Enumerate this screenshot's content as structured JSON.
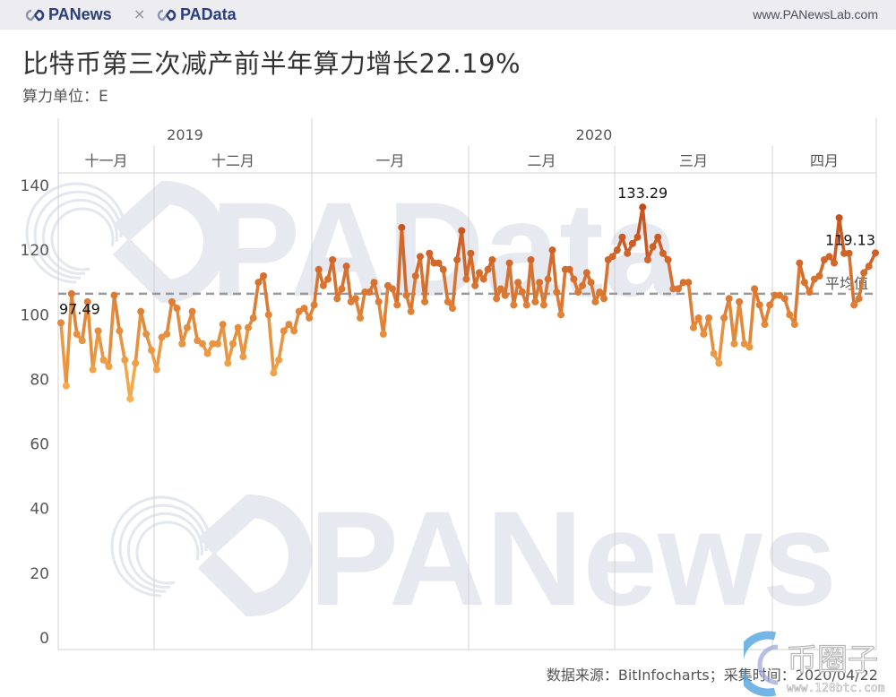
{
  "header": {
    "brand_left": "PANews",
    "separator": "×",
    "brand_right": "PAData",
    "site_url": "www.PANewsLab.com"
  },
  "title": "比特币第三次减产前半年算力增长22.19%",
  "subtitle": "算力单位：E",
  "footer": {
    "source": "数据来源：BitInfocharts；采集时间：2020/04/22"
  },
  "watermarks": {
    "center_top": "PAData",
    "center_bottom": "PANews",
    "corner_text": "币圈子",
    "corner_url": "www.120btc.com"
  },
  "colors": {
    "line_start": "#f5a442",
    "line_end": "#c9501c",
    "average_line": "#999999",
    "grid": "#d0d0d0",
    "watermark": "#e6e9f0",
    "brand": "#2a3e7a"
  },
  "chart_data": {
    "type": "line",
    "title": "比特币第三次减产前半年算力增长22.19%",
    "ylabel": "算力单位：E",
    "xlabel": "",
    "ylim": [
      0,
      140
    ],
    "yticks": [
      0,
      20,
      40,
      60,
      80,
      100,
      120,
      140
    ],
    "grid": true,
    "years": [
      {
        "label": "2019",
        "months": 2
      },
      {
        "label": "2020",
        "months": 4
      }
    ],
    "months": [
      "十一月",
      "十二月",
      "一月",
      "二月",
      "三月",
      "四月"
    ],
    "average": {
      "label": "平均值",
      "value": 106.5
    },
    "annotations": [
      {
        "label": "97.49",
        "point": "first"
      },
      {
        "label": "133.29",
        "point": "max"
      },
      {
        "label": "119.13",
        "point": "last"
      }
    ],
    "series": [
      {
        "name": "算力",
        "segments": [
          {
            "month": "十一月",
            "values": [
              97.49,
              78,
              106.5,
              94,
              92,
              104,
              83,
              95,
              86,
              84,
              106,
              95,
              86,
              74,
              85,
              101,
              94,
              89
            ]
          },
          {
            "month": "十二月",
            "values": [
              83,
              93,
              94,
              104,
              102,
              91,
              96,
              101,
              92,
              91,
              88,
              91,
              91,
              97,
              85,
              91,
              96,
              87,
              96,
              99,
              110,
              112,
              100,
              82,
              86,
              95,
              97,
              95,
              101,
              102,
              99
            ]
          },
          {
            "month": "一月",
            "values": [
              103,
              114,
              109,
              111,
              117,
              105,
              108,
              115,
              104,
              105,
              99,
              107,
              107,
              110,
              104,
              94,
              109,
              108,
              103,
              127,
              106,
              101,
              112,
              118,
              104,
              119,
              116,
              116,
              114,
              104,
              102,
              117,
              126,
              111
            ]
          },
          {
            "month": "二月",
            "values": [
              119,
              109,
              113,
              111,
              114,
              117,
              105,
              108,
              106,
              116,
              103,
              110,
              107,
              103,
              117,
              104,
              110,
              103,
              111,
              120,
              107,
              100,
              114,
              114,
              111,
              107,
              109,
              113,
              110,
              104,
              107,
              105,
              117,
              118
            ]
          },
          {
            "month": "三月",
            "values": [
              120,
              124,
              119,
              122,
              124,
              133.29,
              117,
              121,
              124,
              119,
              117,
              108,
              108,
              110,
              110,
              96,
              99,
              94,
              99,
              88,
              85,
              99,
              105,
              91,
              104,
              91,
              90,
              108,
              103,
              97,
              103
            ]
          },
          {
            "month": "四月",
            "values": [
              106,
              106,
              105,
              100,
              97,
              116,
              110,
              107,
              111,
              112,
              117,
              118,
              116,
              130,
              119,
              119,
              103,
              105,
              113,
              115,
              119.13
            ]
          }
        ]
      }
    ]
  }
}
